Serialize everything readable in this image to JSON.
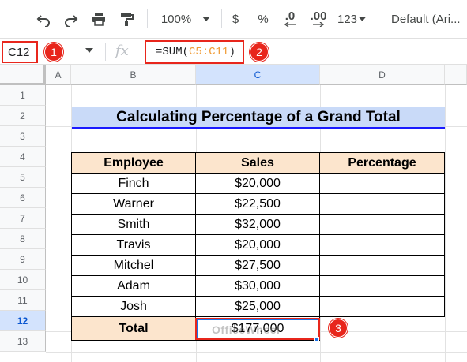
{
  "toolbar": {
    "zoom": "100%",
    "currency": "$",
    "percent": "%",
    "decrease_decimal": ".0",
    "increase_decimal": ".00",
    "number_format": "123",
    "font": "Default (Ari..."
  },
  "formula_bar": {
    "cell_ref": "C12",
    "fx": "fx",
    "formula_prefix": "=SUM(",
    "formula_range": "C5:C11",
    "formula_suffix": ")"
  },
  "callouts": [
    "1",
    "2",
    "3"
  ],
  "columns": [
    "A",
    "B",
    "C",
    "D"
  ],
  "rows": [
    "1",
    "2",
    "3",
    "4",
    "5",
    "6",
    "7",
    "8",
    "9",
    "10",
    "11",
    "12",
    "13"
  ],
  "sheet": {
    "title": "Calculating Percentage of a Grand Total",
    "headers": [
      "Employee",
      "Sales",
      "Percentage"
    ],
    "data": [
      {
        "employee": "Finch",
        "sales": "$20,000",
        "percentage": ""
      },
      {
        "employee": "Warner",
        "sales": "$22,500",
        "percentage": ""
      },
      {
        "employee": "Smith",
        "sales": "$32,000",
        "percentage": ""
      },
      {
        "employee": "Travis",
        "sales": "$20,000",
        "percentage": ""
      },
      {
        "employee": "Mitchel",
        "sales": "$27,500",
        "percentage": ""
      },
      {
        "employee": "Adam",
        "sales": "$30,000",
        "percentage": ""
      },
      {
        "employee": "Josh",
        "sales": "$25,000",
        "percentage": ""
      }
    ],
    "total_label": "Total",
    "total_value": "$177,000"
  },
  "watermark": "OfficeWheel",
  "colors": {
    "accent_red": "#e8261c",
    "title_fill": "#c9daf8",
    "header_fill": "#fce5cd",
    "selection_blue": "#1a73e8"
  }
}
